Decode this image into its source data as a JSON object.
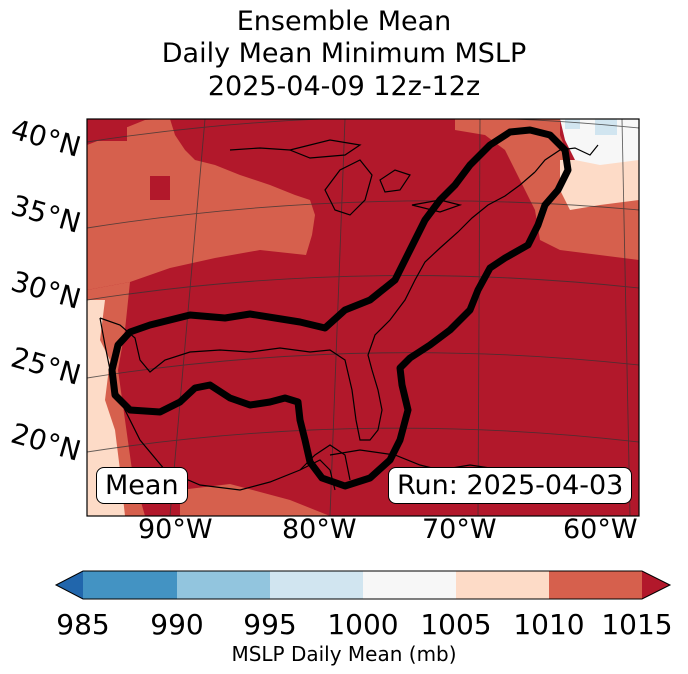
{
  "title": {
    "line1": "Ensemble Mean",
    "line2": "Daily Mean Minimum MSLP",
    "line3": "2025-04-09 12z-12z"
  },
  "map": {
    "lat_labels": [
      "40°N",
      "35°N",
      "30°N",
      "25°N",
      "20°N"
    ],
    "lon_labels": [
      "90°W",
      "80°W",
      "70°W",
      "60°W"
    ],
    "mean_box": "Mean",
    "run_box": "Run: 2025-04-03",
    "dominant_field_color": "#b2182b",
    "secondary_field_color": "#d6604d"
  },
  "colorbar": {
    "ticks": [
      "985",
      "990",
      "995",
      "1000",
      "1005",
      "1010",
      "1015"
    ],
    "colors": [
      "#2166ac",
      "#4393c3",
      "#92c5de",
      "#d1e5f0",
      "#f7f7f7",
      "#fddbc7",
      "#d6604d",
      "#b2182b"
    ],
    "label": "MSLP Daily Mean (mb)"
  }
}
